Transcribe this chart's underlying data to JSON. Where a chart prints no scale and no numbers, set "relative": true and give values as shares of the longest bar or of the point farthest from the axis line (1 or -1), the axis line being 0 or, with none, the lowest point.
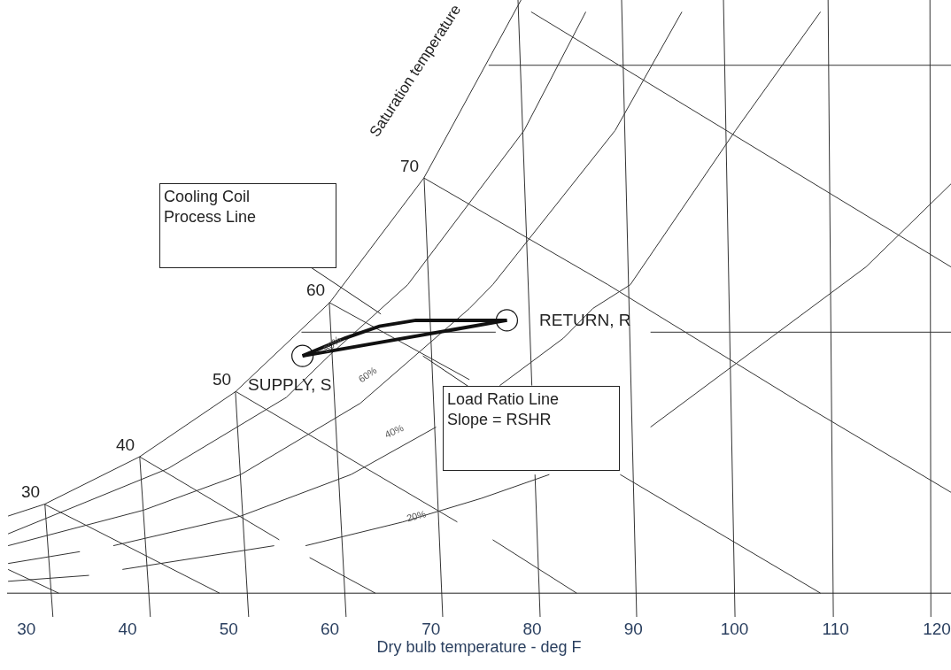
{
  "chart_data": {
    "type": "line",
    "relative": true,
    "xlabel": "Dry bulb temperature - deg F",
    "xlim": [
      28.1,
      121.4
    ],
    "xticks": [
      30,
      40,
      50,
      60,
      70,
      80,
      90,
      100,
      110,
      120
    ],
    "series": [
      {
        "color": "#333333",
        "x": [
          28.2,
          31.8,
          41.2,
          50.7,
          60.0,
          69.3,
          78.9
        ],
        "values": [
          0.13,
          0.15,
          0.23,
          0.34,
          0.49,
          0.7,
          1.0
        ]
      },
      {
        "color": "#333333",
        "x": [
          28.2,
          44.0,
          55.7,
          59.9,
          67.7,
          79.2,
          85.3
        ],
        "values": [
          0.1,
          0.21,
          0.33,
          0.4,
          0.52,
          0.78,
          0.98
        ]
      },
      {
        "color": "#333333",
        "x": [
          28.2,
          41.6,
          51.2,
          63.0,
          73.8,
          76.1,
          88.2,
          94.8
        ],
        "values": [
          0.08,
          0.14,
          0.2,
          0.32,
          0.48,
          0.52,
          0.78,
          0.98
        ]
      },
      {
        "color": "#333333",
        "x": [
          38.6,
          51.2,
          62.1,
          70.5,
          73.6,
          76.8,
          83.1,
          86.0,
          89.7,
          100.1,
          108.5
        ],
        "values": [
          0.08,
          0.13,
          0.2,
          0.28,
          null,
          0.35,
          0.43,
          0.48,
          0.52,
          0.78,
          0.98
        ]
      },
      {
        "color": "#333333",
        "x": [
          57.6,
          67.2,
          75.0,
          81.7,
          86.7,
          91.7,
          113.0,
          121.4
        ],
        "values": [
          0.08,
          0.12,
          0.16,
          0.2,
          null,
          0.28,
          0.55,
          0.69
        ]
      },
      {
        "color": "#333333",
        "x": [
          28.2,
          35.3,
          37.4,
          39.5,
          54.5
        ],
        "values": [
          0.05,
          0.07,
          null,
          0.04,
          0.08
        ]
      },
      {
        "color": "#333333",
        "x": [
          28.2,
          36.2
        ],
        "values": [
          0.02,
          0.03
        ]
      },
      {
        "color": "#333333",
        "x": [
          31.8,
          49.1
        ],
        "values": [
          0.15,
          0.0
        ]
      },
      {
        "color": "#333333",
        "x": [
          28.2,
          33.2
        ],
        "values": [
          0.04,
          0.0
        ]
      },
      {
        "color": "#333333",
        "x": [
          41.2,
          55.0,
          56.5,
          58.0,
          64.5
        ],
        "values": [
          0.23,
          0.09,
          null,
          0.06,
          0.0
        ]
      },
      {
        "color": "#333333",
        "x": [
          50.7,
          72.6,
          74.3,
          76.1,
          84.4
        ],
        "values": [
          0.34,
          0.12,
          null,
          0.09,
          0.0
        ]
      },
      {
        "color": "#333333",
        "x": [
          59.95,
          73.8,
          80.0,
          88.7,
          108.5
        ],
        "values": [
          0.49,
          0.36,
          null,
          0.2,
          0.0
        ]
      },
      {
        "color": "#333333",
        "x": [
          69.3,
          87.5,
          106.6,
          121.4
        ],
        "values": [
          0.7,
          0.52,
          0.32,
          0.17
        ]
      },
      {
        "color": "#333333",
        "x": [
          79.9,
          121.4
        ],
        "values": [
          0.98,
          0.55
        ]
      },
      {
        "color": "#333333",
        "x": [
          75.7,
          121.4
        ],
        "values": [
          0.89,
          0.89
        ]
      },
      {
        "color": "#333333",
        "x": [
          57.2,
          76.4,
          84.0,
          91.7,
          121.4
        ],
        "values": [
          0.44,
          0.44,
          null,
          0.44,
          0.44
        ]
      },
      {
        "color": "#333333",
        "x": [
          31.84,
          32.63
        ],
        "values": [
          0.15,
          -0.04
        ]
      },
      {
        "color": "#333333",
        "x": [
          41.21,
          42.26
        ],
        "values": [
          0.23,
          -0.04
        ]
      },
      {
        "color": "#333333",
        "x": [
          50.67,
          51.98
        ],
        "values": [
          0.34,
          -0.04
        ]
      },
      {
        "color": "#333333",
        "x": [
          59.95,
          61.61
        ],
        "values": [
          0.49,
          -0.04
        ]
      },
      {
        "color": "#333333",
        "x": [
          69.32,
          71.16
        ],
        "values": [
          0.7,
          -0.04
        ]
      },
      {
        "color": "#333333",
        "x": [
          78.6,
          79.97,
          80.1,
          80.28,
          80.79
        ],
        "values": [
          1.0,
          0.35,
          null,
          0.2,
          -0.04
        ]
      },
      {
        "color": "#333333",
        "x": [
          88.84,
          90.33
        ],
        "values": [
          1.0,
          -0.04
        ]
      },
      {
        "color": "#333333",
        "x": [
          98.91,
          100.05
        ],
        "values": [
          1.0,
          -0.04
        ]
      },
      {
        "color": "#333333",
        "x": [
          109.25,
          109.77
        ],
        "values": [
          1.0,
          -0.04
        ]
      },
      {
        "color": "#333333",
        "x": [
          119.32,
          119.41
        ],
        "values": [
          1.0,
          -0.04
        ]
      },
      {
        "color": "#111111",
        "x": [
          57.3,
          61.5,
          64.9,
          68.5,
          77.5
        ],
        "values": [
          0.4,
          0.43,
          0.45,
          0.46,
          0.46
        ]
      },
      {
        "color": "#111111",
        "x": [
          57.3,
          77.5
        ],
        "values": [
          0.4,
          0.46
        ]
      },
      {
        "type": "scatter",
        "color": "#111111",
        "x": [
          57.3,
          77.5
        ],
        "values": [
          0.4,
          0.46
        ]
      }
    ],
    "annotations": [
      "Saturation temperature",
      {
        "text": "30",
        "x": 31.8,
        "y": 0.15
      },
      {
        "text": "40",
        "x": 41.2,
        "y": 0.23
      },
      {
        "text": "50",
        "x": 50.7,
        "y": 0.34
      },
      {
        "text": "60",
        "x": 60.0,
        "y": 0.49
      },
      {
        "text": "70",
        "x": 69.3,
        "y": 0.7
      },
      {
        "text": "80%",
        "x": 60.2,
        "y": 0.42
      },
      "60%",
      "40%",
      {
        "text": "20%",
        "x": 68.5,
        "y": 0.13
      },
      {
        "text": "SUPPLY, S",
        "x": 57.3,
        "y": 0.4
      },
      {
        "text": "RETURN, R",
        "x": 77.5,
        "y": 0.46
      },
      "Cooling Coil\nProcess Line",
      {
        "text": "Load Ratio Line\nSlope = RSHR",
        "x": 69.2,
        "y": 0.4
      }
    ]
  }
}
